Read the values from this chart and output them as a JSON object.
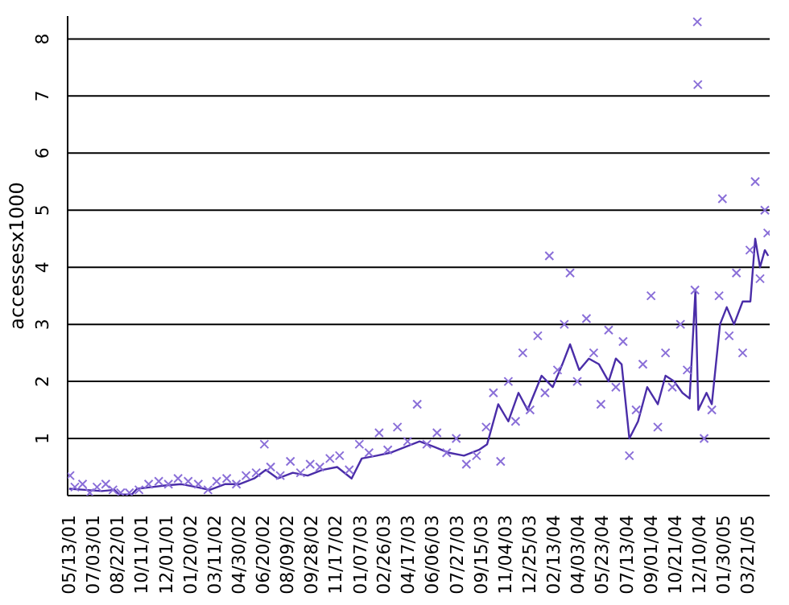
{
  "chart_data": {
    "type": "scatter",
    "ylabel": "accessesx1000",
    "xlim": [
      "2001-05-10",
      "2005-05-05"
    ],
    "xticks": [
      {
        "value": "2001-05-13",
        "label": "05/13/01"
      },
      {
        "value": "2001-07-03",
        "label": "07/03/01"
      },
      {
        "value": "2001-08-22",
        "label": "08/22/01"
      },
      {
        "value": "2001-10-11",
        "label": "10/11/01"
      },
      {
        "value": "2001-12-01",
        "label": "12/01/01"
      },
      {
        "value": "2002-01-20",
        "label": "01/20/02"
      },
      {
        "value": "2002-03-11",
        "label": "03/11/02"
      },
      {
        "value": "2002-04-30",
        "label": "04/30/02"
      },
      {
        "value": "2002-06-20",
        "label": "06/20/02"
      },
      {
        "value": "2002-08-09",
        "label": "08/09/02"
      },
      {
        "value": "2002-09-28",
        "label": "09/28/02"
      },
      {
        "value": "2002-11-17",
        "label": "11/17/02"
      },
      {
        "value": "2003-01-07",
        "label": "01/07/03"
      },
      {
        "value": "2003-02-26",
        "label": "02/26/03"
      },
      {
        "value": "2003-04-17",
        "label": "04/17/03"
      },
      {
        "value": "2003-06-06",
        "label": "06/06/03"
      },
      {
        "value": "2003-07-27",
        "label": "07/27/03"
      },
      {
        "value": "2003-09-15",
        "label": "09/15/03"
      },
      {
        "value": "2003-11-04",
        "label": "11/04/03"
      },
      {
        "value": "2003-12-25",
        "label": "12/25/03"
      },
      {
        "value": "2004-02-13",
        "label": "02/13/04"
      },
      {
        "value": "2004-04-03",
        "label": "04/03/04"
      },
      {
        "value": "2004-05-23",
        "label": "05/23/04"
      },
      {
        "value": "2004-07-13",
        "label": "07/13/04"
      },
      {
        "value": "2004-09-01",
        "label": "09/01/04"
      },
      {
        "value": "2004-10-21",
        "label": "10/21/04"
      },
      {
        "value": "2004-12-10",
        "label": "12/10/04"
      },
      {
        "value": "2005-01-30",
        "label": "01/30/05"
      },
      {
        "value": "2005-03-21",
        "label": "03/21/05"
      }
    ],
    "ylim": [
      0,
      8.4
    ],
    "yticks": [
      1,
      2,
      3,
      4,
      5,
      6,
      7,
      8
    ],
    "grid": "y",
    "series": [
      {
        "marker": "cross",
        "color": "#8a6fd8",
        "x": [
          "2001-05-15",
          "2001-05-25",
          "2001-06-10",
          "2001-06-25",
          "2001-07-10",
          "2001-07-28",
          "2001-08-12",
          "2001-08-28",
          "2001-09-15",
          "2001-10-05",
          "2001-10-25",
          "2001-11-15",
          "2001-12-05",
          "2001-12-25",
          "2002-01-15",
          "2002-02-05",
          "2002-02-25",
          "2002-03-15",
          "2002-04-05",
          "2002-04-25",
          "2002-05-15",
          "2002-06-05",
          "2002-06-22",
          "2002-07-05",
          "2002-07-25",
          "2002-08-15",
          "2002-09-05",
          "2002-09-25",
          "2002-10-15",
          "2002-11-05",
          "2002-11-25",
          "2002-12-15",
          "2003-01-05",
          "2003-01-25",
          "2003-02-15",
          "2003-03-05",
          "2003-03-25",
          "2003-04-15",
          "2003-05-05",
          "2003-05-25",
          "2003-06-15",
          "2003-07-05",
          "2003-07-25",
          "2003-08-15",
          "2003-09-05",
          "2003-09-25",
          "2003-10-10",
          "2003-10-25",
          "2003-11-10",
          "2003-11-25",
          "2003-12-10",
          "2003-12-25",
          "2004-01-10",
          "2004-01-25",
          "2004-02-03",
          "2004-02-20",
          "2004-03-05",
          "2004-03-17",
          "2004-04-01",
          "2004-04-20",
          "2004-05-05",
          "2004-05-20",
          "2004-06-05",
          "2004-06-20",
          "2004-07-05",
          "2004-07-18",
          "2004-08-01",
          "2004-08-15",
          "2004-09-01",
          "2004-09-15",
          "2004-10-01",
          "2004-10-15",
          "2004-11-01",
          "2004-11-15",
          "2004-12-01",
          "2004-12-06",
          "2004-12-07",
          "2004-12-20",
          "2005-01-05",
          "2005-01-20",
          "2005-01-27",
          "2005-02-10",
          "2005-02-25",
          "2005-03-10",
          "2005-03-25",
          "2005-04-05",
          "2005-04-15",
          "2005-04-25",
          "2005-05-01"
        ],
        "values": [
          0.35,
          0.15,
          0.2,
          0.05,
          0.15,
          0.2,
          0.1,
          0.05,
          0.05,
          0.1,
          0.2,
          0.25,
          0.2,
          0.3,
          0.25,
          0.2,
          0.1,
          0.25,
          0.3,
          0.2,
          0.35,
          0.4,
          0.9,
          0.5,
          0.35,
          0.6,
          0.4,
          0.55,
          0.5,
          0.65,
          0.7,
          0.45,
          0.9,
          0.75,
          1.1,
          0.8,
          1.2,
          0.95,
          1.6,
          0.9,
          1.1,
          0.75,
          1.0,
          0.55,
          0.7,
          1.2,
          1.8,
          0.6,
          2.0,
          1.3,
          2.5,
          1.5,
          2.8,
          1.8,
          4.2,
          2.2,
          3.0,
          3.9,
          2.0,
          3.1,
          2.5,
          1.6,
          2.9,
          1.9,
          2.7,
          0.7,
          1.5,
          2.3,
          3.5,
          1.2,
          2.5,
          1.9,
          3.0,
          2.2,
          3.6,
          8.3,
          7.2,
          1.0,
          1.5,
          3.5,
          5.2,
          2.8,
          3.9,
          2.5,
          4.3,
          5.5,
          3.8,
          5.0,
          4.6
        ]
      },
      {
        "type": "line",
        "color": "#4a2da8",
        "x": [
          "2001-05-13",
          "2001-06-15",
          "2001-07-20",
          "2001-08-15",
          "2001-08-25",
          "2001-09-20",
          "2001-10-01",
          "2001-11-01",
          "2001-12-01",
          "2002-01-01",
          "2002-02-01",
          "2002-03-01",
          "2002-04-01",
          "2002-05-01",
          "2002-06-01",
          "2002-06-25",
          "2002-07-20",
          "2002-08-20",
          "2002-09-20",
          "2002-10-20",
          "2002-11-20",
          "2002-12-20",
          "2003-01-10",
          "2003-02-10",
          "2003-03-10",
          "2003-04-10",
          "2003-05-10",
          "2003-06-10",
          "2003-07-10",
          "2003-08-10",
          "2003-09-10",
          "2003-09-27",
          "2003-10-20",
          "2003-11-10",
          "2003-12-01",
          "2003-12-20",
          "2004-01-18",
          "2004-02-10",
          "2004-03-01",
          "2004-03-17",
          "2004-04-05",
          "2004-04-25",
          "2004-05-16",
          "2004-06-05",
          "2004-06-20",
          "2004-07-02",
          "2004-07-18",
          "2004-08-05",
          "2004-08-24",
          "2004-09-15",
          "2004-10-01",
          "2004-10-19",
          "2004-11-05",
          "2004-11-20",
          "2004-12-02",
          "2004-12-08",
          "2004-12-25",
          "2005-01-05",
          "2005-01-22",
          "2005-02-05",
          "2005-02-20",
          "2005-03-10",
          "2005-03-26",
          "2005-04-05",
          "2005-04-15",
          "2005-04-25",
          "2005-05-02"
        ],
        "values": [
          0.12,
          0.1,
          0.08,
          0.1,
          0.02,
          0.02,
          0.12,
          0.15,
          0.18,
          0.2,
          0.15,
          0.1,
          0.2,
          0.2,
          0.3,
          0.45,
          0.3,
          0.4,
          0.35,
          0.45,
          0.5,
          0.3,
          0.65,
          0.7,
          0.75,
          0.85,
          0.95,
          0.85,
          0.75,
          0.7,
          0.8,
          0.9,
          1.6,
          1.3,
          1.8,
          1.5,
          2.1,
          1.9,
          2.3,
          2.65,
          2.2,
          2.4,
          2.3,
          2.0,
          2.4,
          2.3,
          1.0,
          1.3,
          1.9,
          1.6,
          2.1,
          2.0,
          1.8,
          1.7,
          3.6,
          1.5,
          1.8,
          1.6,
          3.0,
          3.3,
          3.0,
          3.4,
          3.4,
          4.5,
          4.0,
          4.3,
          4.2
        ]
      }
    ]
  }
}
